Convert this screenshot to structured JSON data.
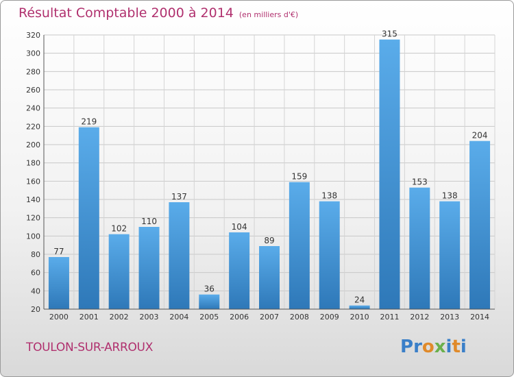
{
  "header": {
    "title": "Résultat Comptable 2000 à 2014",
    "subtitle": "(en milliers d'€)"
  },
  "footer": {
    "city": "TOULON-SUR-ARROUX",
    "logo": "Proxiti"
  },
  "colors": {
    "title": "#b0306e",
    "bar_top": "#5aacea",
    "bar_bottom": "#2e78b8",
    "logo_letters": [
      "#3a7fc8",
      "#3a7fc8",
      "#e08a2a",
      "#6ab04c",
      "#3a7fc8",
      "#e08a2a",
      "#3a7fc8"
    ]
  },
  "chart_data": {
    "type": "bar",
    "title": "Résultat Comptable 2000 à 2014",
    "subtitle": "(en milliers d'€)",
    "categories": [
      "2000",
      "2001",
      "2002",
      "2003",
      "2004",
      "2005",
      "2006",
      "2007",
      "2008",
      "2009",
      "2010",
      "2011",
      "2012",
      "2013",
      "2014"
    ],
    "values": [
      77,
      219,
      102,
      110,
      137,
      36,
      104,
      89,
      159,
      138,
      24,
      315,
      153,
      138,
      204
    ],
    "ylim": [
      20,
      320
    ],
    "yticks": [
      20,
      40,
      60,
      80,
      100,
      120,
      140,
      160,
      180,
      200,
      220,
      240,
      260,
      280,
      300,
      320
    ],
    "grid": true,
    "data_labels": true
  }
}
